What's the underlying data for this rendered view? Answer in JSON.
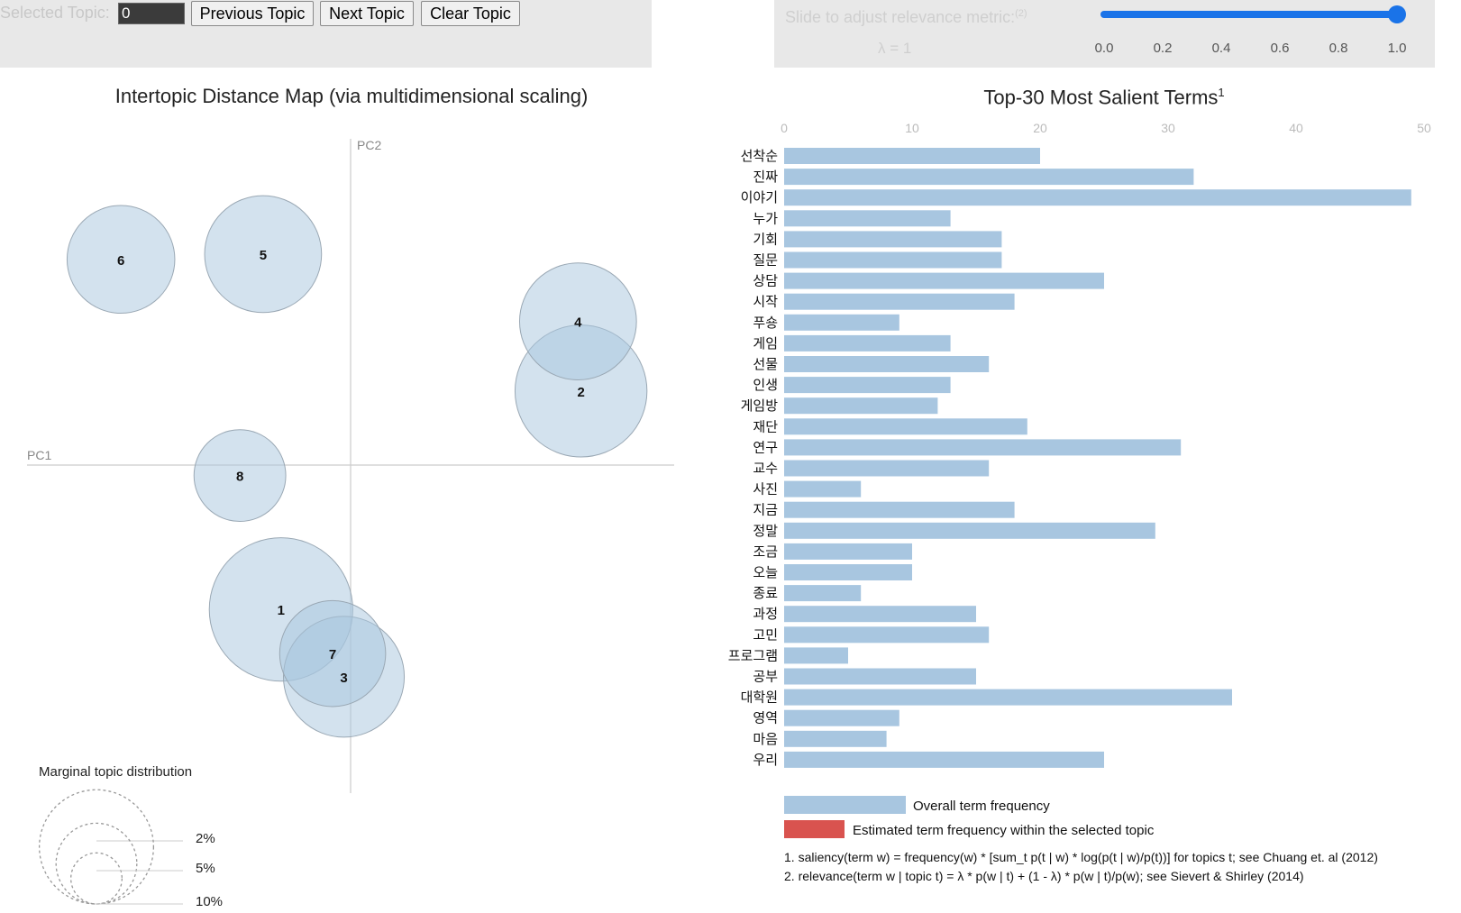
{
  "controls": {
    "selected_topic_label": "Selected Topic:",
    "selected_topic_value": "0",
    "previous_label": "Previous Topic",
    "next_label": "Next Topic",
    "clear_label": "Clear Topic",
    "slider_label": "Slide to adjust relevance metric:",
    "slider_sup": "(2)",
    "lambda_text": "λ = 1",
    "slider_value": 1.0,
    "slider_ticks": [
      "0.0",
      "0.2",
      "0.4",
      "0.6",
      "0.8",
      "1.0"
    ],
    "slider_color": "#1a73e8"
  },
  "chart_data": [
    {
      "type": "scatter",
      "title": "Intertopic Distance Map (via multidimensional scaling)",
      "xlabel": "PC1",
      "ylabel": "PC2",
      "points": [
        {
          "label": "1",
          "x": -0.093,
          "y": -0.193,
          "size": 11.0
        },
        {
          "label": "2",
          "x": 0.308,
          "y": 0.099,
          "size": 9.3
        },
        {
          "label": "3",
          "x": -0.009,
          "y": -0.283,
          "size": 7.8
        },
        {
          "label": "4",
          "x": 0.304,
          "y": 0.192,
          "size": 7.3
        },
        {
          "label": "5",
          "x": -0.117,
          "y": 0.282,
          "size": 7.3
        },
        {
          "label": "6",
          "x": -0.307,
          "y": 0.275,
          "size": 6.2
        },
        {
          "label": "7",
          "x": -0.024,
          "y": -0.252,
          "size": 6.0
        },
        {
          "label": "8",
          "x": -0.148,
          "y": -0.014,
          "size": 4.5
        }
      ],
      "bubble_color": "#a8c6dd",
      "marginal_legend": {
        "title": "Marginal topic distribution",
        "labels": [
          "2%",
          "5%",
          "10%"
        ],
        "values": [
          2,
          5,
          10
        ]
      }
    },
    {
      "type": "bar",
      "orientation": "horizontal",
      "title": "Top-30 Most Salient Terms",
      "title_sup": "1",
      "xlim": [
        0,
        50
      ],
      "x_ticks": [
        "0",
        "10",
        "20",
        "30",
        "40",
        "50"
      ],
      "categories": [
        "선착순",
        "진짜",
        "이야기",
        "누가",
        "기회",
        "질문",
        "상담",
        "시작",
        "푸숑",
        "게임",
        "선물",
        "인생",
        "게임방",
        "재단",
        "연구",
        "교수",
        "사진",
        "지금",
        "정말",
        "조금",
        "오늘",
        "종료",
        "과정",
        "고민",
        "프로그램",
        "공부",
        "대학원",
        "영역",
        "마음",
        "우리"
      ],
      "series": [
        {
          "name": "Overall term frequency",
          "color": "#a8c6e0",
          "values": [
            20,
            32,
            49,
            13,
            17,
            17,
            25,
            18,
            9,
            13,
            16,
            13,
            12,
            19,
            31,
            16,
            6,
            18,
            29,
            10,
            10,
            6,
            15,
            16,
            5,
            15,
            35,
            9,
            8,
            25
          ]
        }
      ],
      "legend": [
        {
          "label": "Overall term frequency",
          "color": "#a8c6e0"
        },
        {
          "label": "Estimated term frequency within the selected topic",
          "color": "#d9534f"
        }
      ],
      "footnotes": [
        "1. saliency(term w) = frequency(w) * [sum_t p(t | w) * log(p(t | w)/p(t))] for topics t; see Chuang et. al (2012)",
        "2. relevance(term w | topic t) = λ * p(w | t) + (1 - λ) * p(w | t)/p(w); see Sievert & Shirley (2014)"
      ]
    }
  ]
}
